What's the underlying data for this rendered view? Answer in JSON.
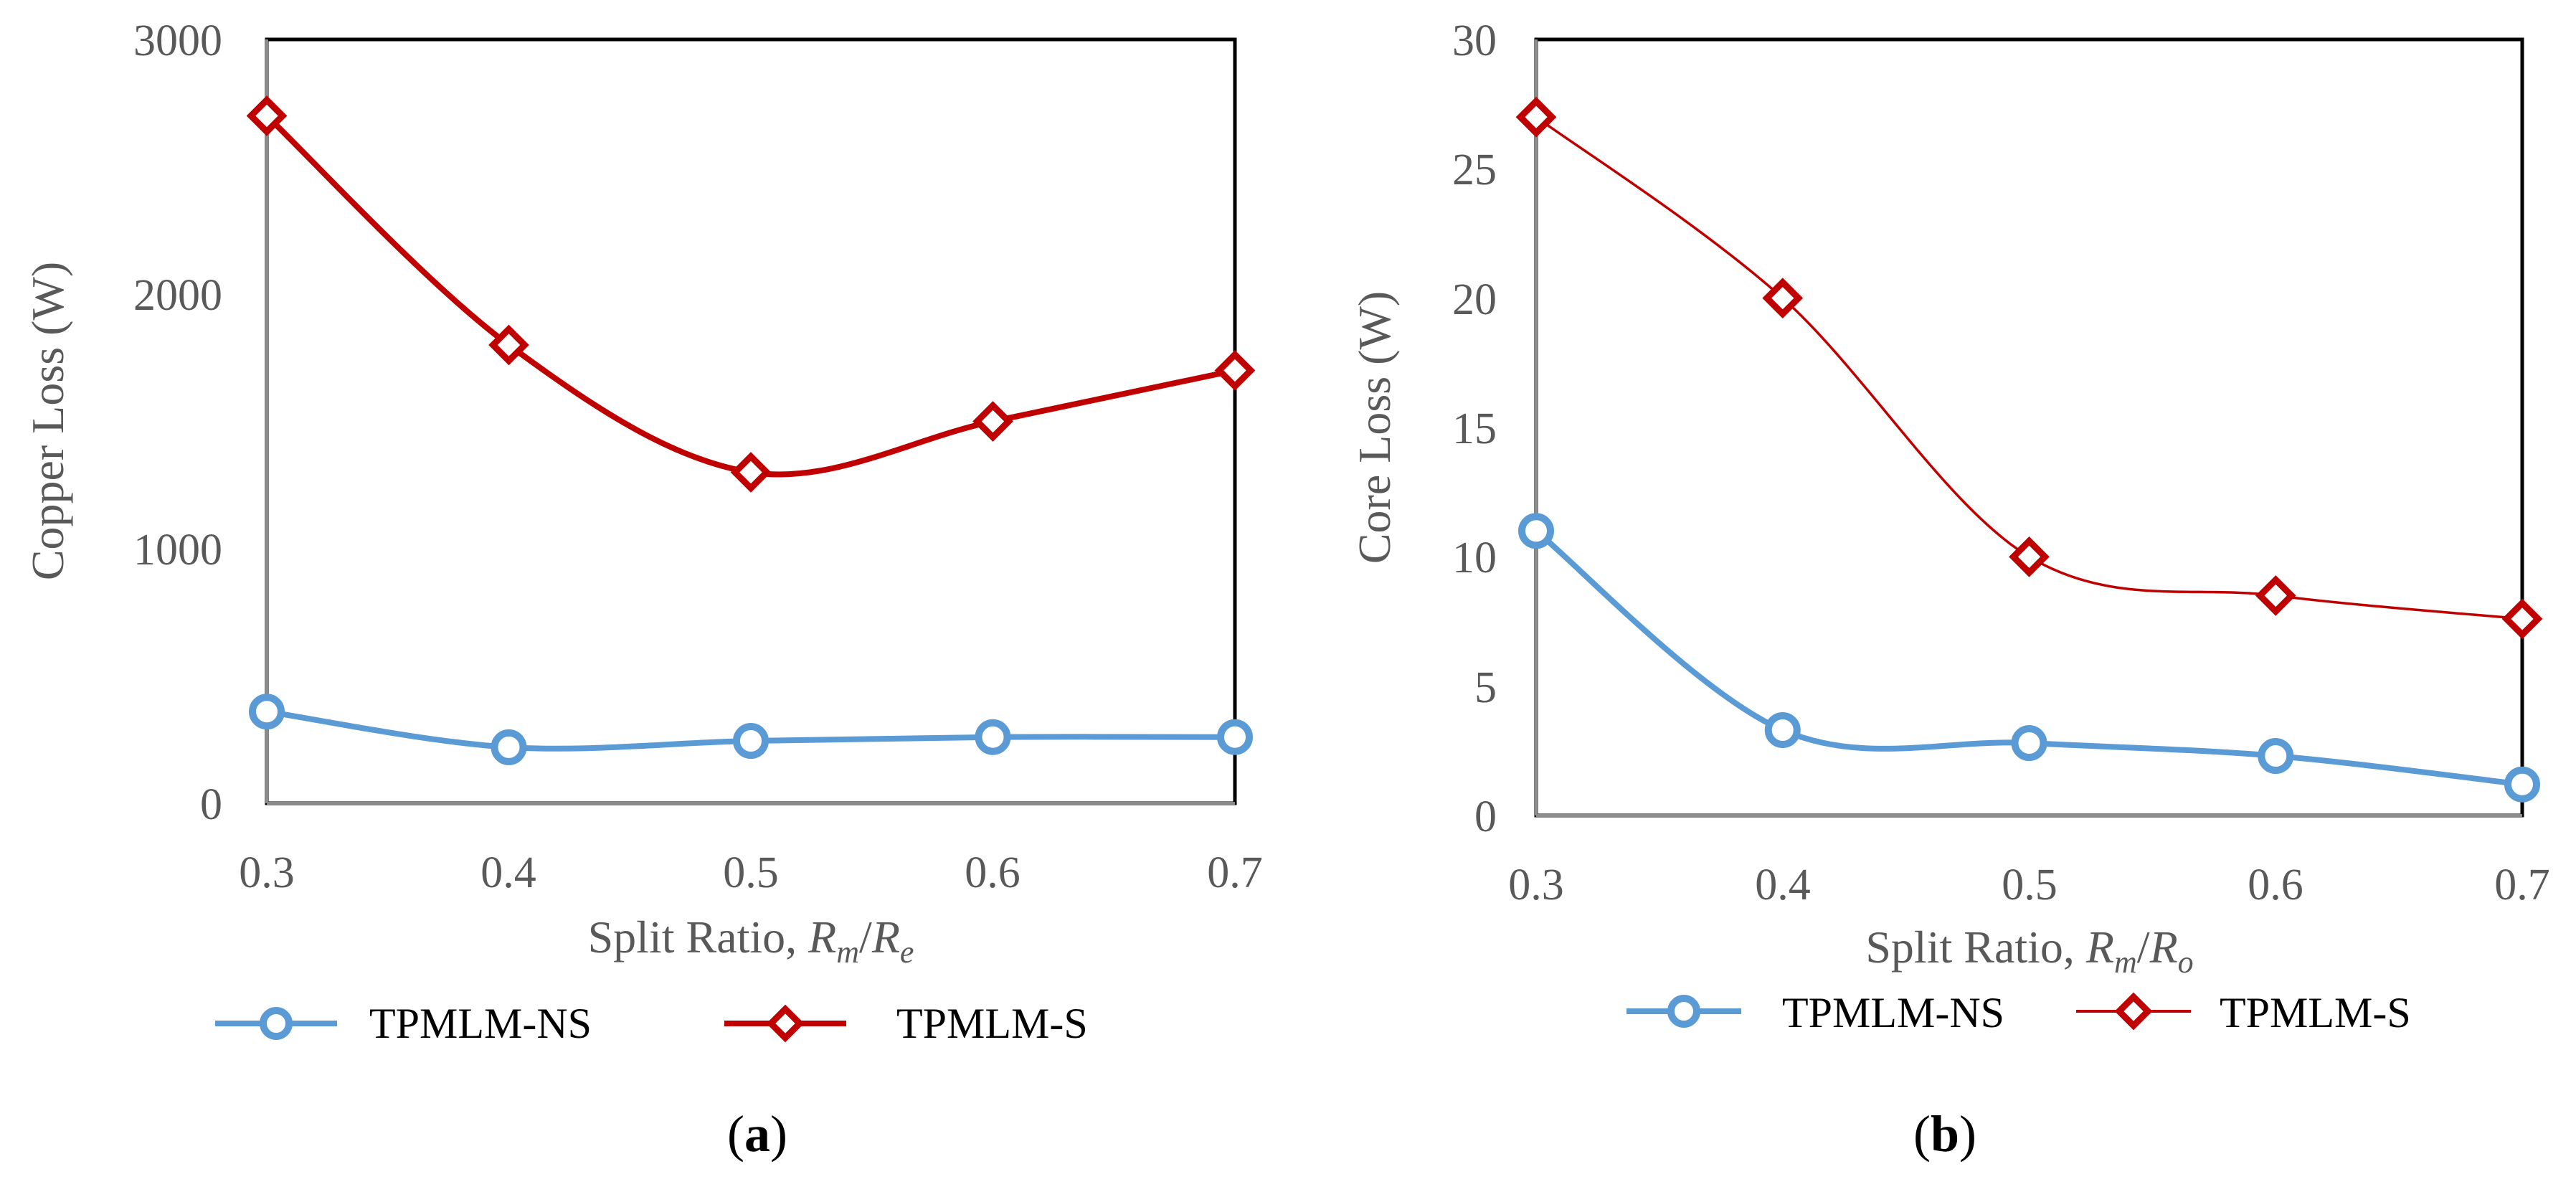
{
  "chart_data": [
    {
      "type": "line",
      "panel_label": "a",
      "title": "",
      "xlabel": "Split Ratio, ",
      "xlabel_var1": "R",
      "xlabel_sub1": "m",
      "xlabel_sep": "/",
      "xlabel_var2": "R",
      "xlabel_sub2": "e",
      "ylabel": "Copper Loss (W)",
      "x": [
        0.3,
        0.4,
        0.5,
        0.6,
        0.7
      ],
      "x_tick_labels": [
        "0.3",
        "0.4",
        "0.5",
        "0.6",
        "0.7"
      ],
      "xlim": [
        0.3,
        0.7
      ],
      "ylim": [
        0,
        3000
      ],
      "y_ticks": [
        0,
        1000,
        2000,
        3000
      ],
      "y_tick_labels": [
        "0",
        "1000",
        "2000",
        "3000"
      ],
      "grid": false,
      "legend_position": "bottom",
      "series": [
        {
          "name": "TPMLM-NS",
          "marker": "circle",
          "color": "#5B9BD5",
          "values": [
            360,
            220,
            245,
            260,
            260
          ]
        },
        {
          "name": "TPMLM-S",
          "marker": "diamond",
          "color": "#C00000",
          "values": [
            2700,
            1800,
            1300,
            1500,
            1700
          ]
        }
      ]
    },
    {
      "type": "line",
      "panel_label": "b",
      "title": "",
      "xlabel": "Split Ratio, ",
      "xlabel_var1": "R",
      "xlabel_sub1": "m",
      "xlabel_sep": "/",
      "xlabel_var2": "R",
      "xlabel_sub2": "o",
      "ylabel": "Core Loss (W)",
      "x": [
        0.3,
        0.4,
        0.5,
        0.6,
        0.7
      ],
      "x_tick_labels": [
        "0.3",
        "0.4",
        "0.5",
        "0.6",
        "0.7"
      ],
      "xlim": [
        0.3,
        0.7
      ],
      "ylim": [
        0,
        30
      ],
      "y_ticks": [
        0,
        5,
        10,
        15,
        20,
        25,
        30
      ],
      "y_tick_labels": [
        "0",
        "5",
        "10",
        "15",
        "20",
        "25",
        "30"
      ],
      "grid": false,
      "legend_position": "bottom",
      "series": [
        {
          "name": "TPMLM-NS",
          "marker": "circle",
          "color": "#5B9BD5",
          "values": [
            11,
            3.3,
            2.8,
            2.3,
            1.2
          ]
        },
        {
          "name": "TPMLM-S",
          "marker": "diamond",
          "color": "#C00000",
          "values": [
            27,
            20,
            10,
            8.5,
            7.6
          ]
        }
      ]
    }
  ]
}
